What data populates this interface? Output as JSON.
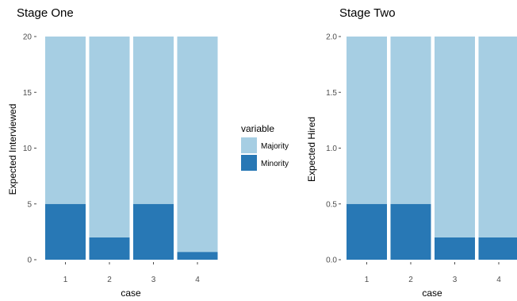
{
  "colors": {
    "majority": "#a6cee3",
    "minority": "#2878b5",
    "tick": "#4d4d4d"
  },
  "legend": {
    "title": "variable",
    "entries": [
      {
        "name": "Majority",
        "color": "#a6cee3"
      },
      {
        "name": "Minority",
        "color": "#2878b5"
      }
    ]
  },
  "chart_data": [
    {
      "type": "bar",
      "stacked": true,
      "title": "Stage One",
      "xlabel": "case",
      "ylabel": "Expected Interviewed",
      "categories": [
        "1",
        "2",
        "3",
        "4"
      ],
      "ylim": [
        0,
        20
      ],
      "yticks": [
        0,
        5,
        10,
        15,
        20
      ],
      "ytick_labels": [
        "0",
        "5",
        "10",
        "15",
        "20"
      ],
      "series": [
        {
          "name": "Minority",
          "values": [
            5,
            2,
            5,
            0.7
          ]
        },
        {
          "name": "Majority",
          "values": [
            15,
            18,
            15,
            19.3
          ]
        }
      ]
    },
    {
      "type": "bar",
      "stacked": true,
      "title": "Stage Two",
      "xlabel": "case",
      "ylabel": "Expected Hired",
      "categories": [
        "1",
        "2",
        "3",
        "4"
      ],
      "ylim": [
        0,
        2
      ],
      "yticks": [
        0,
        0.5,
        1,
        1.5,
        2
      ],
      "ytick_labels": [
        "0.0",
        "0.5",
        "1.0",
        "1.5",
        "2.0"
      ],
      "series": [
        {
          "name": "Minority",
          "values": [
            0.5,
            0.5,
            0.2,
            0.2
          ]
        },
        {
          "name": "Majority",
          "values": [
            1.5,
            1.5,
            1.8,
            1.8
          ]
        }
      ]
    }
  ]
}
